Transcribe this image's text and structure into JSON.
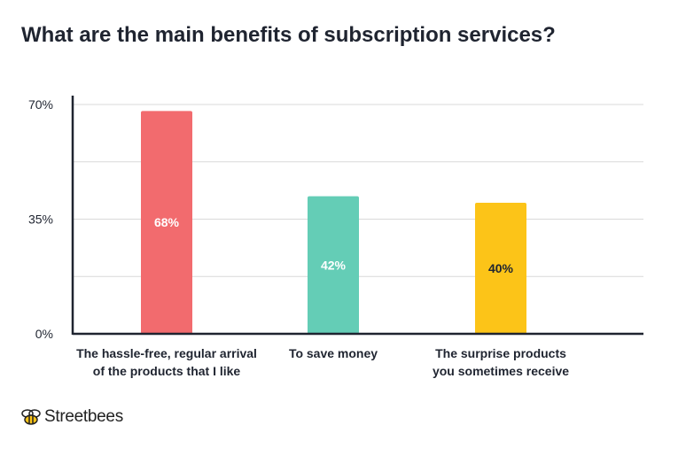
{
  "title": "What are the main benefits of subscription services?",
  "brand": {
    "name": "Streetbees"
  },
  "colors": {
    "axis": "#1f2430",
    "grid": "#d9d9d9"
  },
  "chart_data": {
    "type": "bar",
    "categories": [
      [
        "The hassle-free, regular arrival",
        "of the products that I like"
      ],
      [
        "To save money"
      ],
      [
        "The surprise products",
        "you sometimes receive"
      ]
    ],
    "values": [
      68,
      42,
      40
    ],
    "data_labels": [
      "68%",
      "42%",
      "40%"
    ],
    "bar_colors": [
      "#f26b6e",
      "#64cdb6",
      "#fcc418"
    ],
    "label_colors": [
      "#ffffff",
      "#ffffff",
      "#1f2430"
    ],
    "yticks": [
      0,
      35,
      70
    ],
    "ytick_labels": [
      "0%",
      "35%",
      "70%"
    ],
    "ylim": [
      0,
      70
    ],
    "grid": true
  }
}
